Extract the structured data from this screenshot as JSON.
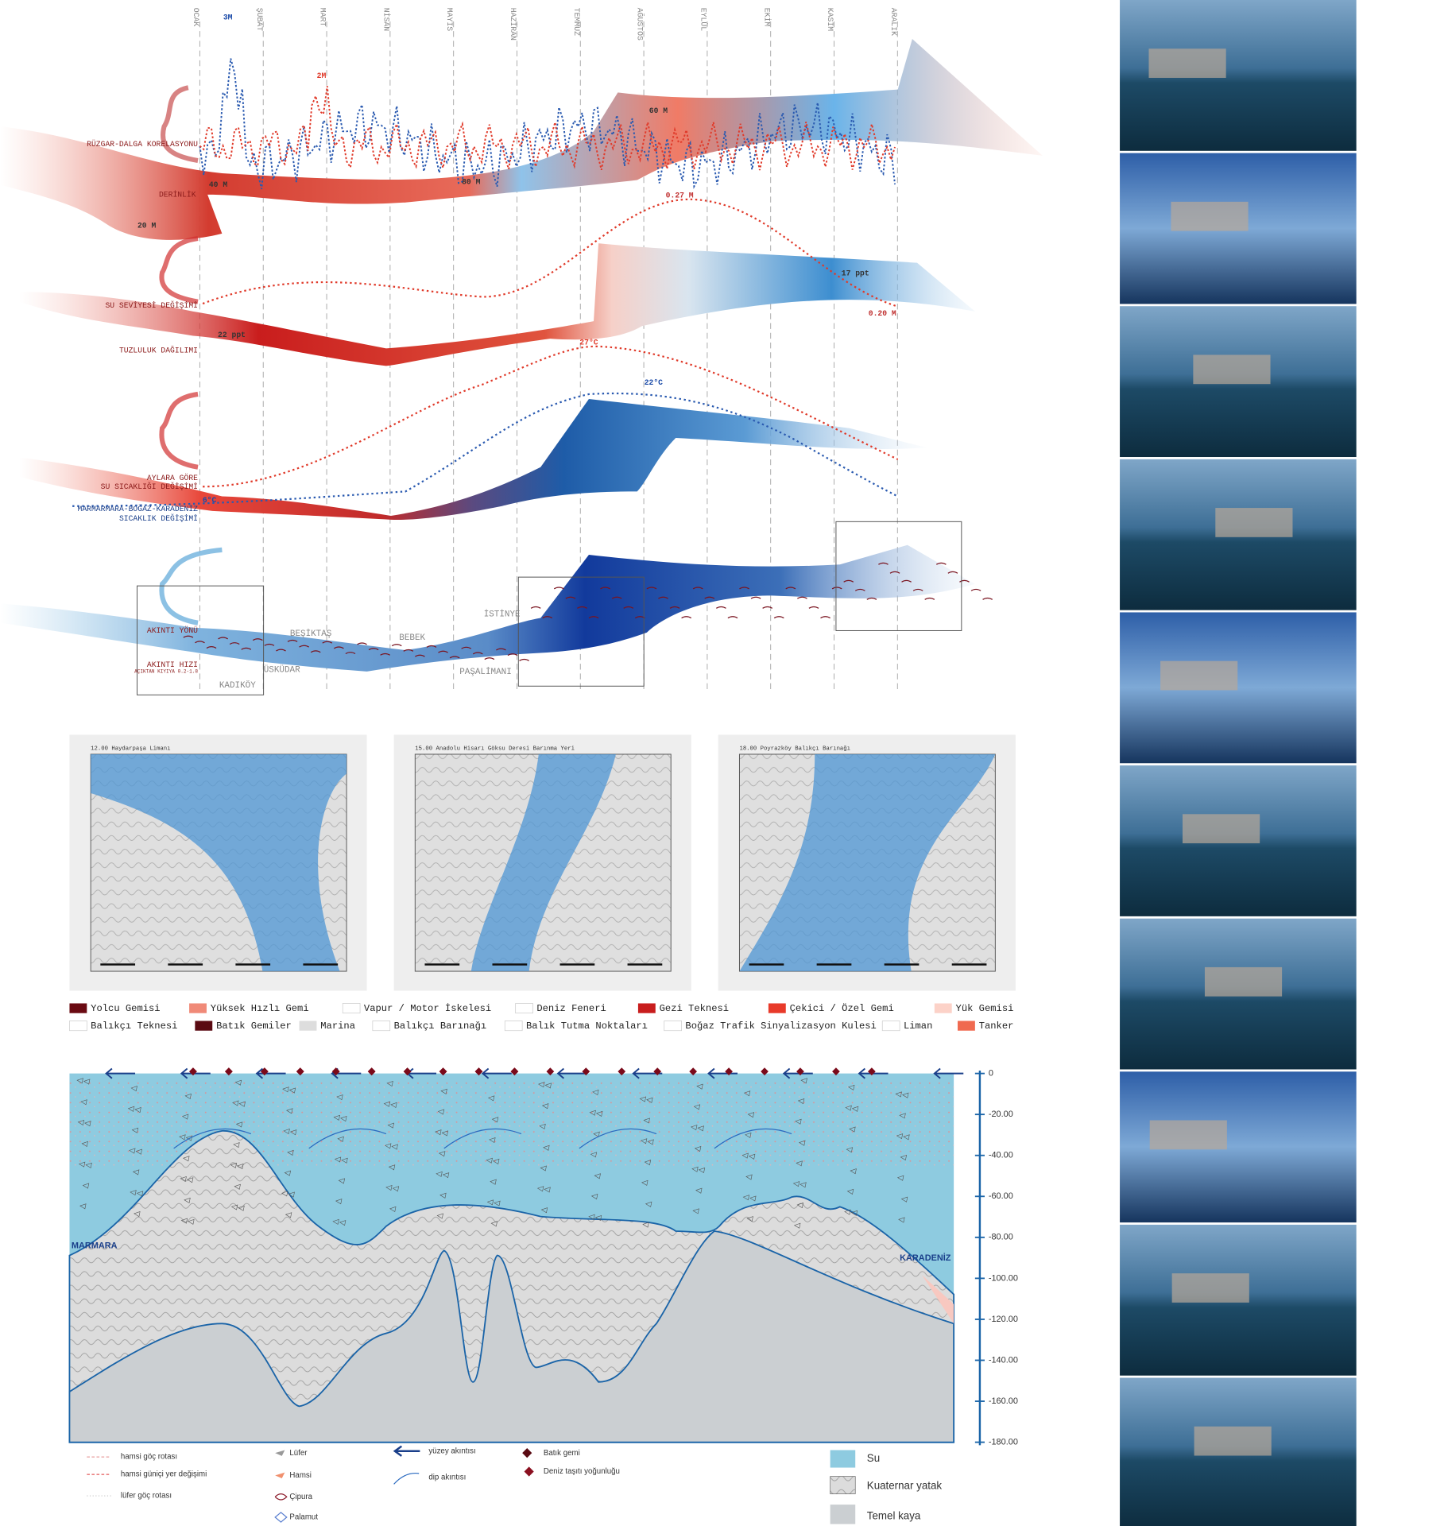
{
  "months": [
    "OCAK",
    "ŞUBAT",
    "MART",
    "NİSAN",
    "MAYIS",
    "HAZİRAN",
    "TEMMUZ",
    "AĞUSTOS",
    "EYLÜL",
    "EKİM",
    "KASIM",
    "ARALIK"
  ],
  "row_labels": [
    "RÜZGAR-DALGA KORELASYONU",
    "DERİNLİK",
    "SU SEVİYESİ DEĞİŞİMİ",
    "TUZLULUK DAĞILIMI",
    "AYLARA GÖRE",
    "SU SICAKLIĞI DEĞİŞİMİ",
    "MARMARMARA-BOĞAZ-KARADENİZ",
    "SICAKLIK DEĞİŞİMİ",
    "AKINTI YÖNÜ",
    "AKINTI HIZI",
    "AÇIKTAN KIYIYA 0.2-1.8"
  ],
  "annotations": [
    "3M",
    "2M",
    "60 M",
    "40 M",
    "80 M",
    "20 M",
    "0.27 M",
    "0.20 M",
    "17 ppt",
    "22 ppt",
    "27°C",
    "22°C",
    "6°C"
  ],
  "places": [
    "BEŞİKTAŞ",
    "ÜSKÜDAR",
    "KADIKÖY",
    "BEBEK",
    "İSTİNYE",
    "PAŞALİMANI"
  ],
  "maps": [
    "12.00 Haydarpaşa Limanı",
    "15.00 Anadolu Hisarı Göksu Deresi Barınma Yeri",
    "18.00 Poyrazköy Balıkçı Barınağı"
  ],
  "legend": [
    "Yolcu Gemisi",
    "Yüksek Hızlı Gemi",
    "Vapur / Motor İskelesi",
    "Deniz Feneri",
    "Gezi Teknesi",
    "Çekici / Özel Gemi",
    "Yük Gemisi",
    "Balıkçı Teknesi",
    "Batık Gemiler",
    "Marina",
    "Balıkçı Barınağı",
    "Balık Tutma Noktaları",
    "Boğaz Trafik Sinyalizasyon Kulesi",
    "Liman",
    "Tanker"
  ],
  "section": {
    "left": "MARMARA",
    "right": "KARADENİZ",
    "depth_ticks": [
      "0",
      "-20.00",
      "-40.00",
      "-60.00",
      "-80.00",
      "-100.00",
      "-120.00",
      "-140.00",
      "-160.00",
      "-180.00"
    ]
  },
  "section_legend": [
    "hamsi göç rotası",
    "hamsi güniçi yer değişimi",
    "lüfer göç rotası",
    "Lüfer",
    "Hamsi",
    "Çipura",
    "Palamut",
    "yüzey akıntısı",
    "dip akıntısı",
    "Batık gemi",
    "Deniz taşıtı yoğunluğu",
    "Su",
    "Kuaternar yatak",
    "Temel kaya"
  ]
}
